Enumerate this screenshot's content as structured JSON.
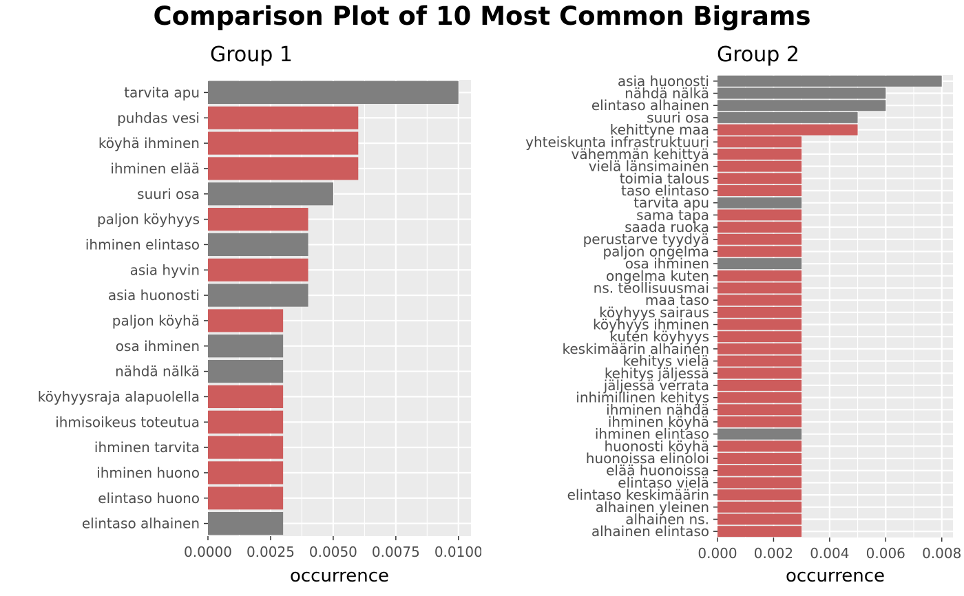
{
  "title": "Comparison Plot of 10 Most Common Bigrams",
  "colors": {
    "panel": "#ebebeb",
    "grid": "#ffffff",
    "grey_bar": "#7f7f7f",
    "red_bar": "#cd5c5c",
    "tick_text": "#4d4d4d"
  },
  "chart_data": [
    {
      "type": "bar",
      "orientation": "horizontal",
      "title": "Group 1",
      "xlabel": "occurrence",
      "xlim": [
        0,
        0.0105
      ],
      "x_ticks": [
        0,
        0.0025,
        0.005,
        0.0075,
        0.01
      ],
      "x_tick_labels": [
        "0.0000",
        "0.0025",
        "0.0050",
        "0.0075",
        "0.0100"
      ],
      "categories": [
        "tarvita apu",
        "puhdas vesi",
        "köyhä ihminen",
        "ihminen elää",
        "suuri osa",
        "paljon köyhyys",
        "ihminen elintaso",
        "asia hyvin",
        "asia huonosti",
        "paljon köyhä",
        "osa ihminen",
        "nähdä nälkä",
        "köyhyysraja alapuolella",
        "ihmisoikeus toteutua",
        "ihminen tarvita",
        "ihminen huono",
        "elintaso huono",
        "elintaso alhainen"
      ],
      "values": [
        0.01,
        0.006,
        0.006,
        0.006,
        0.005,
        0.004,
        0.004,
        0.004,
        0.004,
        0.003,
        0.003,
        0.003,
        0.003,
        0.003,
        0.003,
        0.003,
        0.003,
        0.003
      ],
      "colors": [
        "grey",
        "red",
        "red",
        "red",
        "grey",
        "red",
        "grey",
        "red",
        "grey",
        "red",
        "grey",
        "grey",
        "red",
        "red",
        "red",
        "red",
        "red",
        "grey"
      ]
    },
    {
      "type": "bar",
      "orientation": "horizontal",
      "title": "Group 2",
      "xlabel": "occurrence",
      "xlim": [
        0,
        0.0084
      ],
      "x_ticks": [
        0,
        0.002,
        0.004,
        0.006,
        0.008
      ],
      "x_tick_labels": [
        "0.000",
        "0.002",
        "0.004",
        "0.006",
        "0.008"
      ],
      "categories": [
        "asia huonosti",
        "nähdä nälkä",
        "elintaso alhainen",
        "suuri osa",
        "kehittyne maa",
        "yhteiskunta infrastruktuuri",
        "vähemmän kehittyä",
        "vielä länsimainen",
        "toimia talous",
        "taso elintaso",
        "tarvita apu",
        "sama tapa",
        "saada ruoka",
        "perustarve tyydyä",
        "paljon ongelma",
        "osa ihminen",
        "ongelma kuten",
        "ns. teollisuusmai",
        "maa taso",
        "köyhyys sairaus",
        "köyhyys ihminen",
        "kuten köyhyys",
        "keskimäärin alhainen",
        "kehitys vielä",
        "kehitys jäljessä",
        "jäljessä verrata",
        "inhimillinen kehitys",
        "ihminen nähdä",
        "ihminen köyhä",
        "ihminen elintaso",
        "huonosti köyhä",
        "huonoissa elinoloi",
        "elää huonoissa",
        "elintaso vielä",
        "elintaso keskimäärin",
        "alhainen yleinen",
        "alhainen ns.",
        "alhainen elintaso"
      ],
      "values": [
        0.008,
        0.006,
        0.006,
        0.005,
        0.005,
        0.003,
        0.003,
        0.003,
        0.003,
        0.003,
        0.003,
        0.003,
        0.003,
        0.003,
        0.003,
        0.003,
        0.003,
        0.003,
        0.003,
        0.003,
        0.003,
        0.003,
        0.003,
        0.003,
        0.003,
        0.003,
        0.003,
        0.003,
        0.003,
        0.003,
        0.003,
        0.003,
        0.003,
        0.003,
        0.003,
        0.003,
        0.003,
        0.003
      ],
      "colors": [
        "grey",
        "grey",
        "grey",
        "grey",
        "red",
        "red",
        "red",
        "red",
        "red",
        "red",
        "grey",
        "red",
        "red",
        "red",
        "red",
        "grey",
        "red",
        "red",
        "red",
        "red",
        "red",
        "red",
        "red",
        "red",
        "red",
        "red",
        "red",
        "red",
        "red",
        "grey",
        "red",
        "red",
        "red",
        "red",
        "red",
        "red",
        "red",
        "red"
      ]
    }
  ]
}
